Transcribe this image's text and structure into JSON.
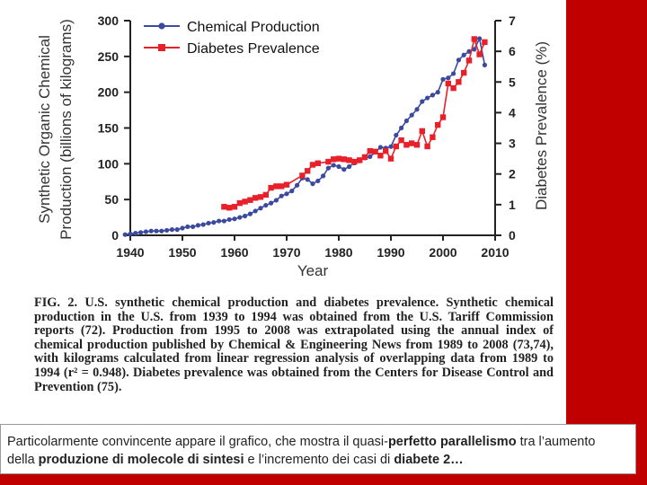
{
  "chart_data": {
    "type": "line",
    "xlabel": "Year",
    "ylabel_left": [
      "Synthetic Organic Chemical",
      "Production (billions of kilograms)"
    ],
    "ylabel_right": "Diabetes Prevalence (%)",
    "xlim": [
      1940,
      2010
    ],
    "ylim_left": [
      0,
      300
    ],
    "ylim_right": [
      0,
      7
    ],
    "x_ticks": [
      1940,
      1950,
      1960,
      1970,
      1980,
      1990,
      2000,
      2010
    ],
    "y_ticks_left": [
      0,
      50,
      100,
      150,
      200,
      250,
      300
    ],
    "y_ticks_right": [
      0,
      1,
      2,
      3,
      4,
      5,
      6,
      7
    ],
    "legend": "top-left",
    "series": [
      {
        "name": "Chemical Production",
        "axis": "left",
        "color": "#3b4a9e",
        "marker": "circle",
        "x": [
          1939,
          1940,
          1941,
          1942,
          1943,
          1944,
          1945,
          1946,
          1947,
          1948,
          1949,
          1950,
          1951,
          1952,
          1953,
          1954,
          1955,
          1956,
          1957,
          1958,
          1959,
          1960,
          1961,
          1962,
          1963,
          1964,
          1965,
          1966,
          1967,
          1968,
          1969,
          1970,
          1971,
          1972,
          1973,
          1974,
          1975,
          1976,
          1977,
          1978,
          1979,
          1980,
          1981,
          1982,
          1983,
          1984,
          1985,
          1986,
          1987,
          1988,
          1989,
          1990,
          1991,
          1992,
          1993,
          1994,
          1995,
          1996,
          1997,
          1998,
          1999,
          2000,
          2001,
          2002,
          2003,
          2004,
          2005,
          2006,
          2007,
          2008
        ],
        "values": [
          1,
          2,
          3,
          4,
          5,
          6,
          6,
          6,
          7,
          8,
          8,
          10,
          12,
          12,
          14,
          15,
          17,
          18,
          20,
          20,
          22,
          23,
          25,
          27,
          30,
          34,
          38,
          42,
          45,
          49,
          55,
          58,
          62,
          70,
          80,
          78,
          72,
          76,
          83,
          94,
          98,
          96,
          92,
          96,
          101,
          104,
          108,
          110,
          116,
          123,
          122,
          124,
          140,
          150,
          160,
          168,
          176,
          187,
          192,
          196,
          200,
          218,
          220,
          226,
          245,
          252,
          257,
          260,
          275,
          238
        ]
      },
      {
        "name": "Diabetes Prevalence",
        "axis": "right",
        "color": "#e8202a",
        "marker": "square",
        "x": [
          1958,
          1959,
          1960,
          1961,
          1962,
          1963,
          1964,
          1965,
          1966,
          1967,
          1968,
          1969,
          1970,
          1973,
          1974,
          1975,
          1976,
          1978,
          1979,
          1980,
          1981,
          1982,
          1983,
          1984,
          1985,
          1986,
          1987,
          1988,
          1989,
          1990,
          1991,
          1992,
          1993,
          1994,
          1995,
          1996,
          1997,
          1998,
          1999,
          2000,
          2001,
          2002,
          2003,
          2004,
          2005,
          2006,
          2007,
          2008
        ],
        "values": [
          0.93,
          0.9,
          0.93,
          1.05,
          1.1,
          1.15,
          1.22,
          1.25,
          1.32,
          1.55,
          1.6,
          1.6,
          1.65,
          1.95,
          2.1,
          2.3,
          2.35,
          2.4,
          2.48,
          2.5,
          2.48,
          2.45,
          2.4,
          2.45,
          2.55,
          2.75,
          2.73,
          2.6,
          2.75,
          2.5,
          2.9,
          3.1,
          2.95,
          3.0,
          2.95,
          3.4,
          2.9,
          3.2,
          3.6,
          3.85,
          4.95,
          4.8,
          5.0,
          5.3,
          5.7,
          6.4,
          5.9,
          6.3
        ]
      }
    ]
  },
  "caption": "FIG. 2. U.S. synthetic chemical production and diabetes prevalence. Synthetic chemical production in the U.S. from 1939 to 1994 was obtained from the U.S. Tariff Commission reports (72). Production from 1995 to 2008 was extrapolated using the annual index of chemical production published by Chemical & Engineering News from 1989 to 2008 (73,74), with kilograms calculated from linear regression analysis of overlapping data from 1989 to 1994 (r² = 0.948). Diabetes prevalence was obtained from the Centers for Disease Control and Prevention (75).",
  "footer": {
    "t1": "Particolarmente convincente appare il grafico, che mostra il quasi-",
    "b1": "perfetto parallelismo",
    "t2": " tra l’aumento della ",
    "b2": "produzione di molecole di sintesi",
    "t3": " e l’incremento dei casi di ",
    "b3": "diabete 2…"
  }
}
